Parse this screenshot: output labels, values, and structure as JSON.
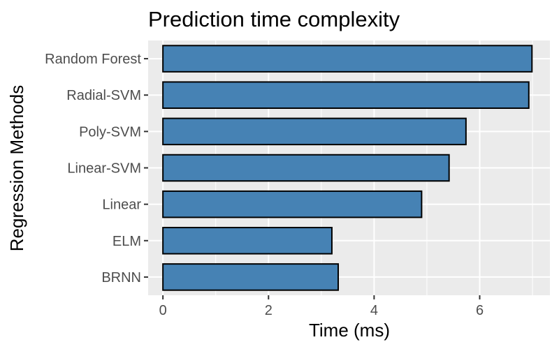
{
  "chart_data": {
    "type": "bar",
    "orientation": "horizontal",
    "title": "Prediction time complexity",
    "xlabel": "Time (ms)",
    "ylabel": "Regression Methods",
    "categories": [
      "BRNN",
      "ELM",
      "Linear",
      "Linear-SVM",
      "Poly-SVM",
      "Radial-SVM",
      "Random Forest"
    ],
    "values": [
      3.32,
      3.2,
      4.9,
      5.42,
      5.74,
      6.93,
      6.99
    ],
    "xlim": [
      -0.28,
      7.33
    ],
    "x_ticks": [
      0,
      2,
      4,
      6
    ],
    "grid": true,
    "legend": "none",
    "bar_fill": "#4682B4",
    "bar_outline": "#000000",
    "panel_background": "#EBEBEB",
    "grid_color": "#FFFFFF"
  }
}
